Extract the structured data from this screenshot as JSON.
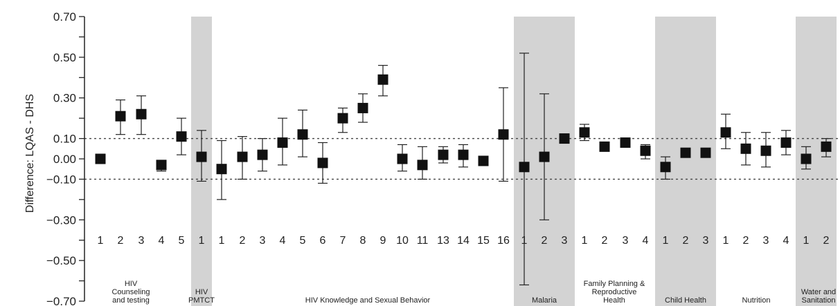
{
  "chart_data": {
    "type": "scatter",
    "ylabel": "Difference: LQAS - DHS",
    "ylim": [
      -0.7,
      0.7
    ],
    "y_ticks": [
      "0.70",
      "0.50",
      "0.30",
      "0.10",
      "0.00",
      "−0.10",
      "−0.30",
      "−0.50",
      "−0.70"
    ],
    "y_tick_values": [
      0.7,
      0.5,
      0.3,
      0.1,
      0.0,
      -0.1,
      -0.3,
      -0.5,
      -0.7
    ],
    "reference_lines": [
      0.1,
      -0.1
    ],
    "grid": false,
    "shade_color": "#d3d3d3",
    "marker_color": "#111111",
    "groups": [
      {
        "name": "HIV\nCounseling\nand testing",
        "shaded": false,
        "indicators": [
          {
            "label": "1",
            "est": 0.0,
            "lo": null,
            "hi": null
          },
          {
            "label": "2",
            "est": 0.21,
            "lo": 0.12,
            "hi": 0.29
          },
          {
            "label": "3",
            "est": 0.22,
            "lo": 0.12,
            "hi": 0.31
          },
          {
            "label": "4",
            "est": -0.03,
            "lo": -0.06,
            "hi": -0.01
          },
          {
            "label": "5",
            "est": 0.11,
            "lo": 0.02,
            "hi": 0.2
          }
        ]
      },
      {
        "name": "HIV\nPMTCT",
        "shaded": true,
        "indicators": [
          {
            "label": "1",
            "est": 0.01,
            "lo": -0.11,
            "hi": 0.14
          }
        ]
      },
      {
        "name": "HIV Knowledge and Sexual Behavior",
        "shaded": false,
        "indicators": [
          {
            "label": "1",
            "est": -0.05,
            "lo": -0.2,
            "hi": 0.09
          },
          {
            "label": "2",
            "est": 0.01,
            "lo": -0.1,
            "hi": 0.11
          },
          {
            "label": "3",
            "est": 0.02,
            "lo": -0.06,
            "hi": 0.1
          },
          {
            "label": "4",
            "est": 0.08,
            "lo": -0.03,
            "hi": 0.2
          },
          {
            "label": "5",
            "est": 0.12,
            "lo": 0.01,
            "hi": 0.24
          },
          {
            "label": "6",
            "est": -0.02,
            "lo": -0.12,
            "hi": 0.08
          },
          {
            "label": "7",
            "est": 0.2,
            "lo": 0.13,
            "hi": 0.25
          },
          {
            "label": "8",
            "est": 0.25,
            "lo": 0.18,
            "hi": 0.32
          },
          {
            "label": "9",
            "est": 0.39,
            "lo": 0.31,
            "hi": 0.46
          },
          {
            "label": "10",
            "est": 0.0,
            "lo": -0.06,
            "hi": 0.07
          },
          {
            "label": "11",
            "est": -0.03,
            "lo": -0.1,
            "hi": 0.06
          },
          {
            "label": "13",
            "est": 0.02,
            "lo": -0.02,
            "hi": 0.06
          },
          {
            "label": "14",
            "est": 0.02,
            "lo": -0.04,
            "hi": 0.07
          },
          {
            "label": "15",
            "est": -0.01,
            "lo": -0.03,
            "hi": 0.01
          },
          {
            "label": "16",
            "est": 0.12,
            "lo": -0.11,
            "hi": 0.35
          }
        ]
      },
      {
        "name": "Malaria",
        "shaded": true,
        "indicators": [
          {
            "label": "1",
            "est": -0.04,
            "lo": -0.62,
            "hi": 0.52
          },
          {
            "label": "2",
            "est": 0.01,
            "lo": -0.3,
            "hi": 0.32
          },
          {
            "label": "3",
            "est": 0.1,
            "lo": null,
            "hi": null
          }
        ]
      },
      {
        "name": "Family Planning &\nReproductive\nHealth",
        "shaded": false,
        "indicators": [
          {
            "label": "1",
            "est": 0.13,
            "lo": 0.09,
            "hi": 0.17
          },
          {
            "label": "2",
            "est": 0.06,
            "lo": null,
            "hi": null
          },
          {
            "label": "3",
            "est": 0.08,
            "lo": null,
            "hi": null
          },
          {
            "label": "4",
            "est": 0.04,
            "lo": 0.0,
            "hi": 0.07
          }
        ]
      },
      {
        "name": "Child Health",
        "shaded": true,
        "indicators": [
          {
            "label": "1",
            "est": -0.04,
            "lo": -0.1,
            "hi": 0.01
          },
          {
            "label": "2",
            "est": 0.03,
            "lo": null,
            "hi": null
          },
          {
            "label": "3",
            "est": 0.03,
            "lo": null,
            "hi": null
          }
        ]
      },
      {
        "name": "Nutrition",
        "shaded": false,
        "indicators": [
          {
            "label": "1",
            "est": 0.13,
            "lo": 0.05,
            "hi": 0.22
          },
          {
            "label": "2",
            "est": 0.05,
            "lo": -0.03,
            "hi": 0.13
          },
          {
            "label": "3",
            "est": 0.04,
            "lo": -0.04,
            "hi": 0.13
          },
          {
            "label": "4",
            "est": 0.08,
            "lo": 0.02,
            "hi": 0.14
          }
        ]
      },
      {
        "name": "Water and\nSanitation",
        "shaded": true,
        "indicators": [
          {
            "label": "1",
            "est": 0.0,
            "lo": -0.05,
            "hi": 0.06
          },
          {
            "label": "2",
            "est": 0.06,
            "lo": 0.01,
            "hi": 0.1
          }
        ]
      }
    ]
  }
}
